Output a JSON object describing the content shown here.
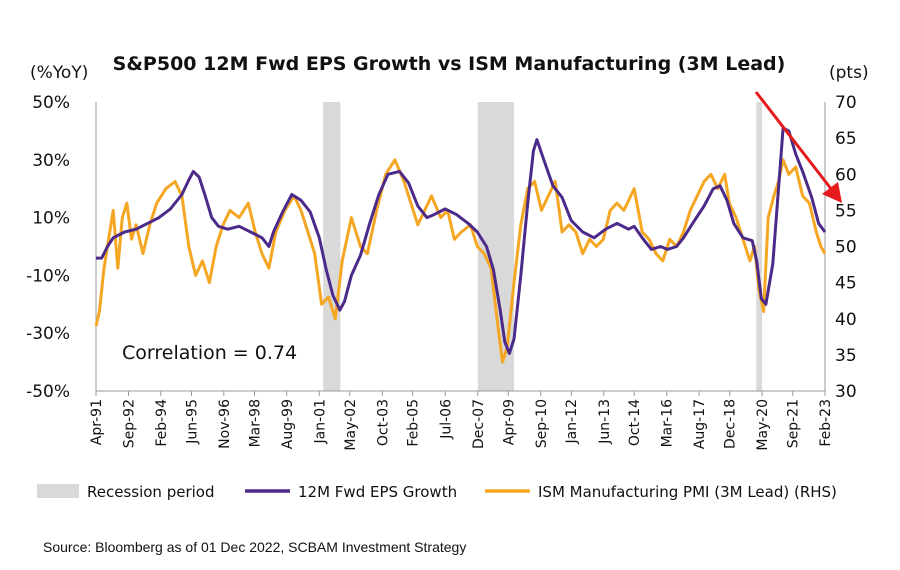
{
  "chart_data": {
    "type": "line",
    "title": "S&P500 12M Fwd EPS Growth vs ISM Manufacturing (3M Lead)",
    "left_unit": "(%YoY)",
    "right_unit": "(pts)",
    "y_left": {
      "min": -50,
      "max": 50,
      "ticks": [
        50,
        30,
        10,
        -10,
        -30,
        -50
      ],
      "tick_labels": [
        "50%",
        "30%",
        "10%",
        "-10%",
        "-30%",
        "-50%"
      ]
    },
    "y_right": {
      "min": 30,
      "max": 70,
      "ticks": [
        70,
        65,
        60,
        55,
        50,
        45,
        40,
        35,
        30
      ],
      "tick_labels": [
        "70",
        "65",
        "60",
        "55",
        "50",
        "45",
        "40",
        "35",
        "30"
      ]
    },
    "x_range": [
      1991.25,
      2023.08
    ],
    "x_ticks": [
      {
        "label": "Apr-91",
        "x": 1991.25
      },
      {
        "label": "Sep-92",
        "x": 1992.67
      },
      {
        "label": "Feb-94",
        "x": 1994.08
      },
      {
        "label": "Jun-95",
        "x": 1995.42
      },
      {
        "label": "Nov-96",
        "x": 1996.83
      },
      {
        "label": "Mar-98",
        "x": 1998.17
      },
      {
        "label": "Aug-99",
        "x": 1999.58
      },
      {
        "label": "Jan-01",
        "x": 2001.0
      },
      {
        "label": "May-02",
        "x": 2002.33
      },
      {
        "label": "Oct-03",
        "x": 2003.75
      },
      {
        "label": "Feb-05",
        "x": 2005.08
      },
      {
        "label": "Jul-06",
        "x": 2006.5
      },
      {
        "label": "Dec-07",
        "x": 2007.92
      },
      {
        "label": "Apr-09",
        "x": 2009.25
      },
      {
        "label": "Sep-10",
        "x": 2010.67
      },
      {
        "label": "Jan-12",
        "x": 2012.0
      },
      {
        "label": "Jun-13",
        "x": 2013.42
      },
      {
        "label": "Oct-14",
        "x": 2014.75
      },
      {
        "label": "Mar-16",
        "x": 2016.17
      },
      {
        "label": "Aug-17",
        "x": 2017.58
      },
      {
        "label": "Dec-18",
        "x": 2018.92
      },
      {
        "label": "May-20",
        "x": 2020.33
      },
      {
        "label": "Sep-21",
        "x": 2021.67
      },
      {
        "label": "Feb-23",
        "x": 2023.08
      }
    ],
    "recessions": [
      {
        "start": 2001.17,
        "end": 2001.92
      },
      {
        "start": 2007.92,
        "end": 2009.5
      },
      {
        "start": 2020.08,
        "end": 2020.33
      }
    ],
    "series": [
      {
        "name": "12M Fwd EPS Growth",
        "axis": "left",
        "color": "#4b2a8a",
        "points": [
          [
            1991.25,
            -4
          ],
          [
            1991.5,
            -4
          ],
          [
            1991.75,
            0
          ],
          [
            1992.0,
            3
          ],
          [
            1992.5,
            5
          ],
          [
            1993.0,
            6
          ],
          [
            1993.5,
            8
          ],
          [
            1994.0,
            10
          ],
          [
            1994.5,
            13
          ],
          [
            1995.0,
            18
          ],
          [
            1995.3,
            23
          ],
          [
            1995.5,
            26
          ],
          [
            1995.75,
            24
          ],
          [
            1996.0,
            18
          ],
          [
            1996.3,
            10
          ],
          [
            1996.6,
            7
          ],
          [
            1997.0,
            6
          ],
          [
            1997.5,
            7
          ],
          [
            1998.0,
            5
          ],
          [
            1998.5,
            3
          ],
          [
            1998.8,
            0
          ],
          [
            1999.0,
            5
          ],
          [
            1999.4,
            12
          ],
          [
            1999.8,
            18
          ],
          [
            2000.2,
            16
          ],
          [
            2000.6,
            12
          ],
          [
            2001.0,
            3
          ],
          [
            2001.3,
            -8
          ],
          [
            2001.6,
            -17
          ],
          [
            2001.9,
            -22
          ],
          [
            2002.1,
            -19
          ],
          [
            2002.4,
            -10
          ],
          [
            2002.8,
            -3
          ],
          [
            2003.2,
            8
          ],
          [
            2003.6,
            18
          ],
          [
            2004.0,
            25
          ],
          [
            2004.5,
            26
          ],
          [
            2004.9,
            22
          ],
          [
            2005.3,
            14
          ],
          [
            2005.7,
            10
          ],
          [
            2006.0,
            11
          ],
          [
            2006.5,
            13
          ],
          [
            2007.0,
            11
          ],
          [
            2007.5,
            8
          ],
          [
            2007.9,
            5
          ],
          [
            2008.3,
            0
          ],
          [
            2008.6,
            -8
          ],
          [
            2008.9,
            -22
          ],
          [
            2009.1,
            -33
          ],
          [
            2009.3,
            -37
          ],
          [
            2009.5,
            -32
          ],
          [
            2009.8,
            -10
          ],
          [
            2010.1,
            15
          ],
          [
            2010.35,
            33
          ],
          [
            2010.5,
            37
          ],
          [
            2010.8,
            30
          ],
          [
            2011.2,
            21
          ],
          [
            2011.6,
            17
          ],
          [
            2012.0,
            9
          ],
          [
            2012.5,
            5
          ],
          [
            2013.0,
            3
          ],
          [
            2013.5,
            6
          ],
          [
            2014.0,
            8
          ],
          [
            2014.5,
            6
          ],
          [
            2014.75,
            7
          ],
          [
            2015.1,
            3
          ],
          [
            2015.5,
            -1
          ],
          [
            2015.9,
            0
          ],
          [
            2016.2,
            -1
          ],
          [
            2016.6,
            0
          ],
          [
            2016.9,
            3
          ],
          [
            2017.3,
            8
          ],
          [
            2017.8,
            14
          ],
          [
            2018.2,
            20
          ],
          [
            2018.5,
            21
          ],
          [
            2018.8,
            16
          ],
          [
            2019.1,
            8
          ],
          [
            2019.5,
            3
          ],
          [
            2019.9,
            2
          ],
          [
            2020.1,
            -5
          ],
          [
            2020.3,
            -18
          ],
          [
            2020.5,
            -20
          ],
          [
            2020.8,
            -6
          ],
          [
            2021.05,
            20
          ],
          [
            2021.25,
            41
          ],
          [
            2021.5,
            40
          ],
          [
            2021.8,
            32
          ],
          [
            2022.1,
            26
          ],
          [
            2022.5,
            17
          ],
          [
            2022.8,
            8
          ],
          [
            2023.08,
            5
          ]
        ]
      },
      {
        "name": "ISM Manufacturing PMI (3M Lead) (RHS)",
        "axis": "right",
        "color": "#f5a623",
        "points": [
          [
            1991.25,
            39
          ],
          [
            1991.4,
            41
          ],
          [
            1991.6,
            47
          ],
          [
            1991.8,
            51
          ],
          [
            1992.0,
            55
          ],
          [
            1992.2,
            47
          ],
          [
            1992.4,
            54
          ],
          [
            1992.6,
            56
          ],
          [
            1992.8,
            51
          ],
          [
            1993.0,
            53
          ],
          [
            1993.3,
            49
          ],
          [
            1993.6,
            53
          ],
          [
            1993.9,
            56
          ],
          [
            1994.3,
            58
          ],
          [
            1994.7,
            59
          ],
          [
            1995.0,
            57
          ],
          [
            1995.3,
            50
          ],
          [
            1995.6,
            46
          ],
          [
            1995.9,
            48
          ],
          [
            1996.2,
            45
          ],
          [
            1996.5,
            50
          ],
          [
            1996.8,
            53
          ],
          [
            1997.1,
            55
          ],
          [
            1997.5,
            54
          ],
          [
            1997.9,
            56
          ],
          [
            1998.2,
            52
          ],
          [
            1998.5,
            49
          ],
          [
            1998.8,
            47
          ],
          [
            1999.1,
            52
          ],
          [
            1999.5,
            55
          ],
          [
            1999.9,
            57
          ],
          [
            2000.2,
            55
          ],
          [
            2000.5,
            52
          ],
          [
            2000.8,
            49
          ],
          [
            2001.1,
            42
          ],
          [
            2001.4,
            43
          ],
          [
            2001.7,
            40
          ],
          [
            2002.0,
            48
          ],
          [
            2002.4,
            54
          ],
          [
            2002.8,
            50
          ],
          [
            2003.1,
            49
          ],
          [
            2003.5,
            55
          ],
          [
            2003.9,
            60
          ],
          [
            2004.3,
            62
          ],
          [
            2004.7,
            59
          ],
          [
            2005.0,
            56
          ],
          [
            2005.3,
            53
          ],
          [
            2005.6,
            55
          ],
          [
            2005.9,
            57
          ],
          [
            2006.3,
            54
          ],
          [
            2006.6,
            55
          ],
          [
            2006.9,
            51
          ],
          [
            2007.2,
            52
          ],
          [
            2007.6,
            53
          ],
          [
            2007.9,
            50
          ],
          [
            2008.2,
            49
          ],
          [
            2008.5,
            47
          ],
          [
            2008.8,
            39
          ],
          [
            2009.0,
            34
          ],
          [
            2009.2,
            36
          ],
          [
            2009.5,
            45
          ],
          [
            2009.8,
            53
          ],
          [
            2010.1,
            58
          ],
          [
            2010.4,
            59
          ],
          [
            2010.7,
            55
          ],
          [
            2011.0,
            57
          ],
          [
            2011.3,
            59
          ],
          [
            2011.6,
            52
          ],
          [
            2011.9,
            53
          ],
          [
            2012.2,
            52
          ],
          [
            2012.5,
            49
          ],
          [
            2012.8,
            51
          ],
          [
            2013.1,
            50
          ],
          [
            2013.4,
            51
          ],
          [
            2013.7,
            55
          ],
          [
            2014.0,
            56
          ],
          [
            2014.3,
            55
          ],
          [
            2014.75,
            58
          ],
          [
            2015.1,
            52
          ],
          [
            2015.4,
            51
          ],
          [
            2015.7,
            49
          ],
          [
            2016.0,
            48
          ],
          [
            2016.3,
            51
          ],
          [
            2016.6,
            50
          ],
          [
            2016.9,
            52
          ],
          [
            2017.2,
            55
          ],
          [
            2017.5,
            57
          ],
          [
            2017.8,
            59
          ],
          [
            2018.1,
            60
          ],
          [
            2018.4,
            58
          ],
          [
            2018.7,
            60
          ],
          [
            2018.9,
            56
          ],
          [
            2019.2,
            54
          ],
          [
            2019.5,
            51
          ],
          [
            2019.8,
            48
          ],
          [
            2020.0,
            50
          ],
          [
            2020.2,
            44
          ],
          [
            2020.4,
            41
          ],
          [
            2020.6,
            54
          ],
          [
            2020.85,
            57
          ],
          [
            2021.05,
            59
          ],
          [
            2021.25,
            62
          ],
          [
            2021.5,
            60
          ],
          [
            2021.8,
            61
          ],
          [
            2022.1,
            57
          ],
          [
            2022.4,
            56
          ],
          [
            2022.7,
            52
          ],
          [
            2022.9,
            50
          ],
          [
            2023.08,
            49
          ]
        ]
      }
    ],
    "legend": [
      "Recession period",
      "12M Fwd EPS Growth",
      "ISM Manufacturing PMI (3M Lead) (RHS)"
    ],
    "annotation": "Correlation = 0.74"
  },
  "source": "Source: Bloomberg as of 01 Dec 2022, SCBAM Investment Strategy",
  "colors": {
    "recession": "#d9d9d9",
    "eps": "#4b2a8a",
    "ism": "#f5a623",
    "arrow": "#e41a1c"
  }
}
